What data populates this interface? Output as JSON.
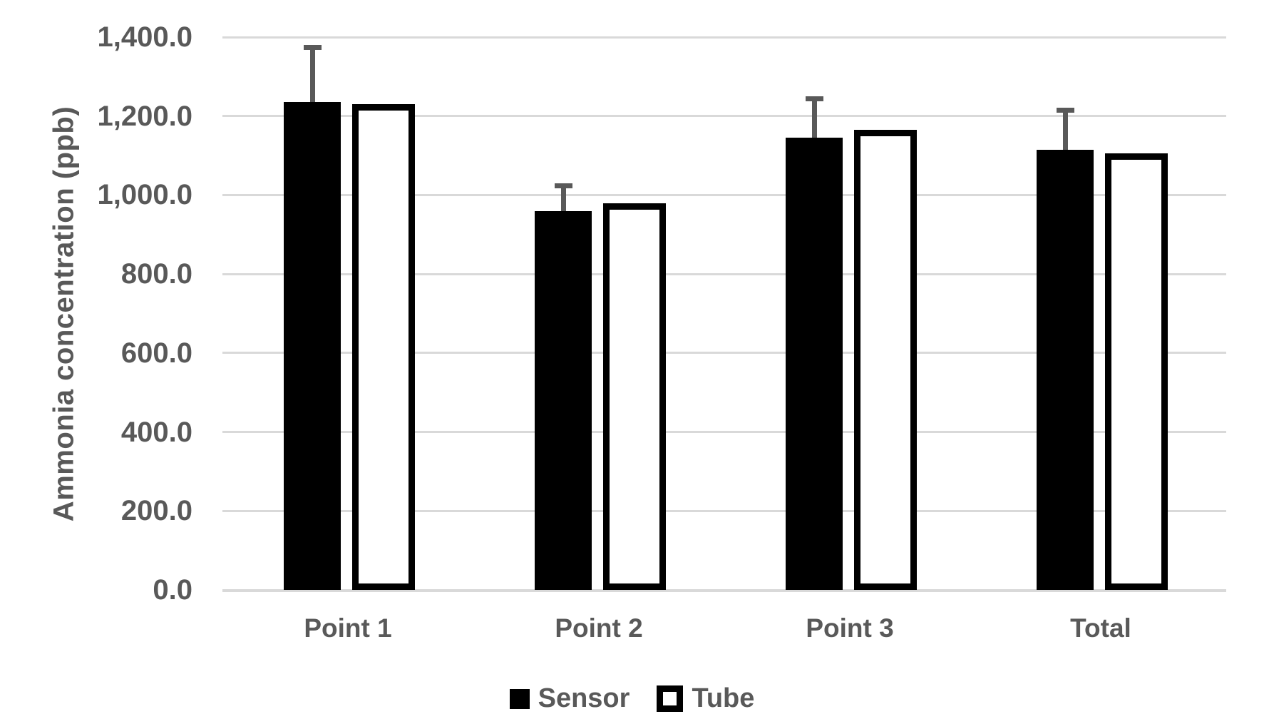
{
  "chart_data": {
    "type": "bar",
    "title": "",
    "xlabel": "",
    "ylabel": "Ammonia concentration (ppb)",
    "categories": [
      "Point 1",
      "Point 2",
      "Point 3",
      "Total"
    ],
    "series": [
      {
        "name": "Sensor",
        "style": "filled-black",
        "values": [
          1235,
          960,
          1145,
          1115
        ],
        "error_plus": [
          140,
          65,
          100,
          100
        ]
      },
      {
        "name": "Tube",
        "style": "white-with-black-border",
        "values": [
          1230,
          980,
          1165,
          1105
        ],
        "error_plus": [
          0,
          0,
          0,
          0
        ]
      }
    ],
    "ylim": [
      0,
      1400
    ],
    "ytick_step": 200,
    "ytick_labels": [
      "0.0",
      "200.0",
      "400.0",
      "600.0",
      "800.0",
      "1,000.0",
      "1,200.0",
      "1,400.0"
    ],
    "grid": "horizontal-only",
    "legend_position": "bottom"
  },
  "colors": {
    "sensor_bar": "#000000",
    "tube_bar_fill": "#ffffff",
    "tube_bar_border": "#000000",
    "axis_text": "#595959",
    "gridline": "#d9d9d9",
    "error_bar": "#595959",
    "background": "#ffffff"
  }
}
